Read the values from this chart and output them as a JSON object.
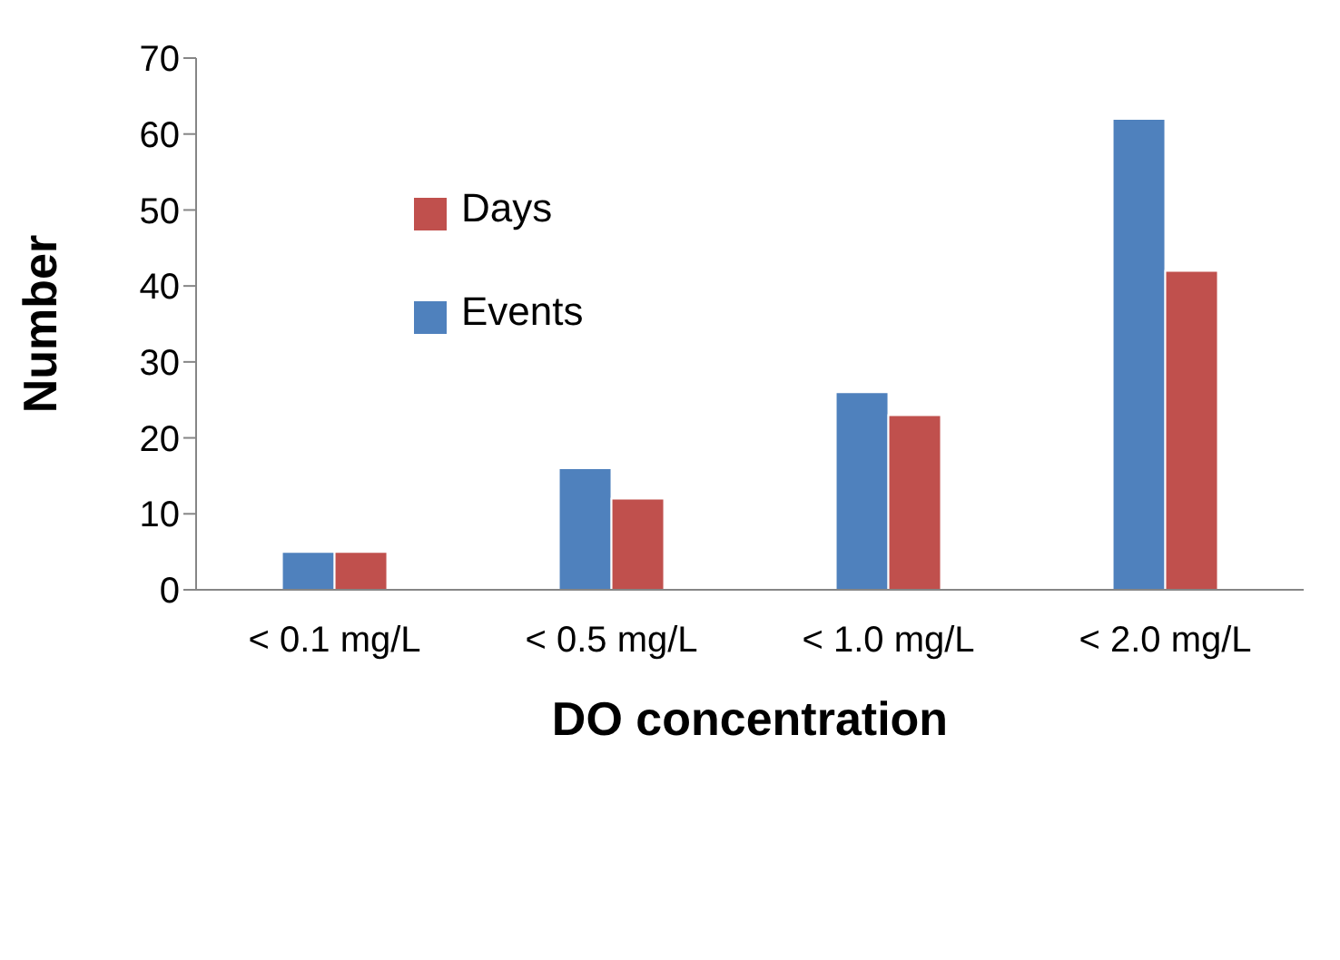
{
  "chart_data": {
    "type": "bar",
    "xlabel": "DO concentration",
    "ylabel": "Number",
    "categories": [
      "< 0.1 mg/L",
      "< 0.5 mg/L",
      "< 1.0 mg/L",
      "< 2.0 mg/L"
    ],
    "series": [
      {
        "name": "Events",
        "color": "#4f81bd",
        "values": [
          5,
          16,
          26,
          62
        ]
      },
      {
        "name": "Days",
        "color": "#c0504d",
        "values": [
          5,
          12,
          23,
          42
        ]
      }
    ],
    "ylim": [
      0,
      70
    ],
    "yticks": [
      0,
      10,
      20,
      30,
      40,
      50,
      60,
      70
    ],
    "grid": false,
    "legend": "top left"
  }
}
